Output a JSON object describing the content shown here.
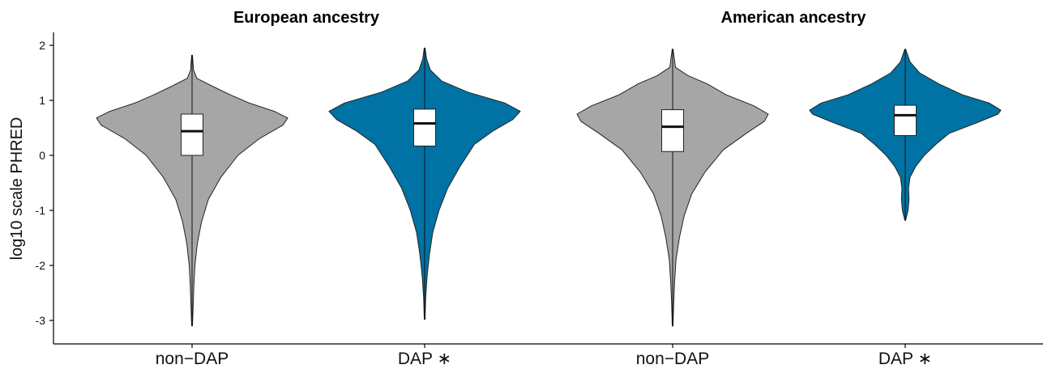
{
  "chart_data": {
    "type": "violin",
    "ylabel": "log10 scale PHRED",
    "ylim": [
      -3.35,
      2.2
    ],
    "yticks": [
      2,
      1,
      0,
      -1,
      -2,
      -3
    ],
    "ytick_labels": [
      "2",
      "1",
      "0",
      "-1",
      "-2",
      "-3"
    ],
    "panels": [
      {
        "title": "European ancestry",
        "categories": [
          {
            "label": "non−DAP",
            "color": "#a6a6a6",
            "box": {
              "q1": 0.0,
              "median": 0.44,
              "q3": 0.75
            },
            "whisker": [
              -3.1,
              1.82
            ],
            "density": [
              [
                -3.1,
                0.004
              ],
              [
                -2.8,
                0.01
              ],
              [
                -2.4,
                0.018
              ],
              [
                -2.0,
                0.03
              ],
              [
                -1.6,
                0.055
              ],
              [
                -1.2,
                0.1
              ],
              [
                -0.8,
                0.17
              ],
              [
                -0.4,
                0.3
              ],
              [
                0.0,
                0.48
              ],
              [
                0.3,
                0.7
              ],
              [
                0.55,
                0.95
              ],
              [
                0.68,
                1.0
              ],
              [
                0.8,
                0.86
              ],
              [
                0.95,
                0.6
              ],
              [
                1.1,
                0.4
              ],
              [
                1.25,
                0.22
              ],
              [
                1.4,
                0.05
              ],
              [
                1.55,
                0.015
              ],
              [
                1.82,
                0.004
              ]
            ]
          },
          {
            "label": "DAP ∗",
            "color": "#0072a3",
            "box": {
              "q1": 0.17,
              "median": 0.58,
              "q3": 0.84
            },
            "whisker": [
              -2.98,
              1.95
            ],
            "density": [
              [
                -2.98,
                0.004
              ],
              [
                -2.6,
                0.01
              ],
              [
                -2.2,
                0.025
              ],
              [
                -1.8,
                0.05
              ],
              [
                -1.4,
                0.085
              ],
              [
                -1.0,
                0.15
              ],
              [
                -0.6,
                0.24
              ],
              [
                -0.2,
                0.37
              ],
              [
                0.2,
                0.52
              ],
              [
                0.45,
                0.72
              ],
              [
                0.65,
                0.92
              ],
              [
                0.8,
                1.0
              ],
              [
                0.95,
                0.84
              ],
              [
                1.15,
                0.45
              ],
              [
                1.35,
                0.18
              ],
              [
                1.55,
                0.06
              ],
              [
                1.75,
                0.02
              ],
              [
                1.95,
                0.004
              ]
            ]
          }
        ]
      },
      {
        "title": "American ancestry",
        "categories": [
          {
            "label": "non−DAP",
            "color": "#a6a6a6",
            "box": {
              "q1": 0.07,
              "median": 0.52,
              "q3": 0.83
            },
            "whisker": [
              -3.1,
              1.93
            ],
            "density": [
              [
                -3.1,
                0.004
              ],
              [
                -2.7,
                0.01
              ],
              [
                -2.3,
                0.02
              ],
              [
                -1.9,
                0.035
              ],
              [
                -1.5,
                0.07
              ],
              [
                -1.1,
                0.12
              ],
              [
                -0.7,
                0.2
              ],
              [
                -0.3,
                0.34
              ],
              [
                0.1,
                0.53
              ],
              [
                0.4,
                0.77
              ],
              [
                0.62,
                0.96
              ],
              [
                0.75,
                1.0
              ],
              [
                0.9,
                0.85
              ],
              [
                1.1,
                0.56
              ],
              [
                1.3,
                0.36
              ],
              [
                1.45,
                0.16
              ],
              [
                1.6,
                0.03
              ],
              [
                1.93,
                0.004
              ]
            ]
          },
          {
            "label": "DAP ∗",
            "color": "#0072a3",
            "box": {
              "q1": 0.36,
              "median": 0.73,
              "q3": 0.91
            },
            "whisker": [
              -1.18,
              1.93
            ],
            "density": [
              [
                -1.18,
                0.004
              ],
              [
                -1.0,
                0.03
              ],
              [
                -0.8,
                0.04
              ],
              [
                -0.6,
                0.035
              ],
              [
                -0.4,
                0.05
              ],
              [
                -0.2,
                0.11
              ],
              [
                0.0,
                0.2
              ],
              [
                0.2,
                0.32
              ],
              [
                0.4,
                0.46
              ],
              [
                0.6,
                0.76
              ],
              [
                0.75,
                0.97
              ],
              [
                0.82,
                1.0
              ],
              [
                0.95,
                0.88
              ],
              [
                1.1,
                0.6
              ],
              [
                1.3,
                0.35
              ],
              [
                1.5,
                0.15
              ],
              [
                1.7,
                0.05
              ],
              [
                1.93,
                0.004
              ]
            ]
          }
        ]
      }
    ]
  }
}
